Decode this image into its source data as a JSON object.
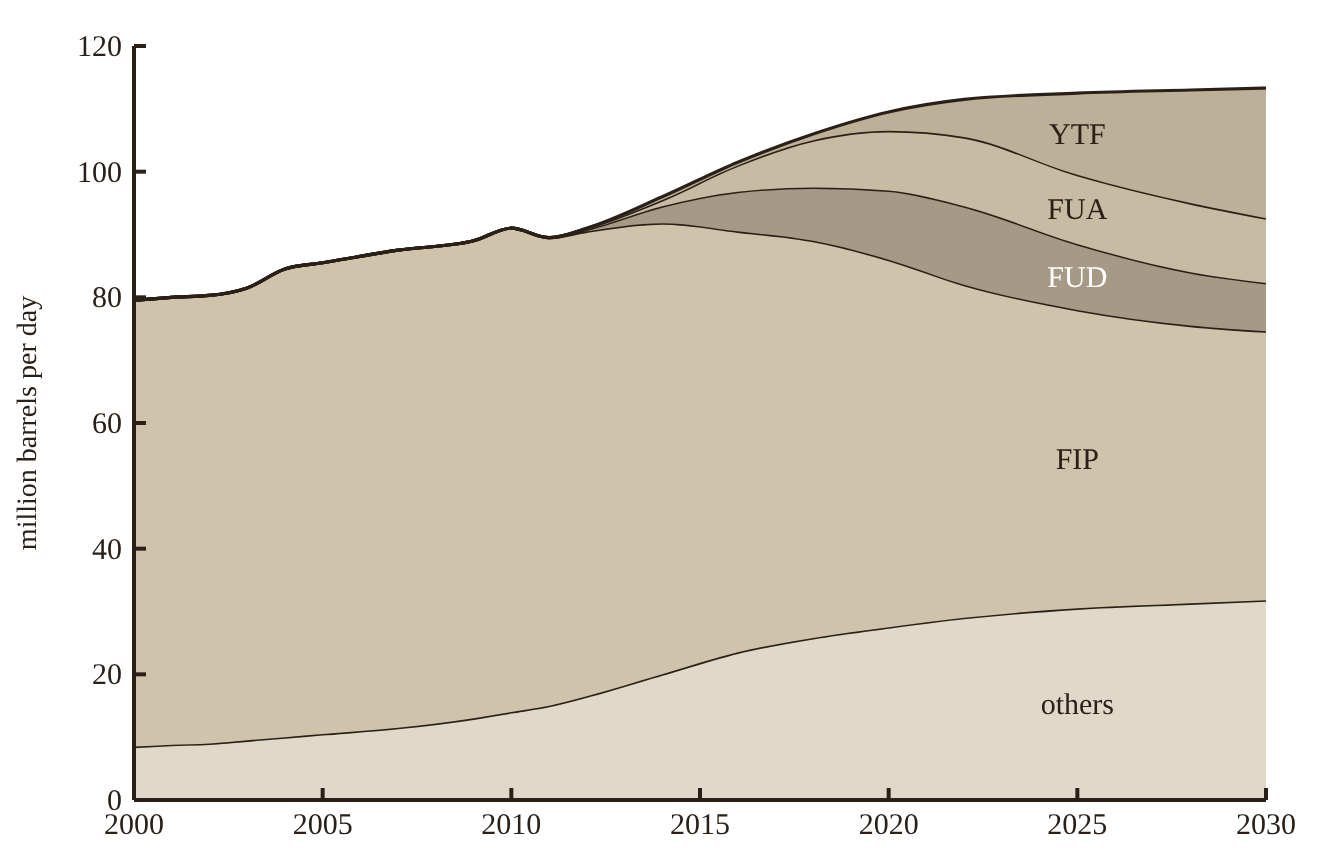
{
  "chart_data": {
    "type": "area",
    "stacked": true,
    "ylabel": "million barrels per day",
    "x": [
      2000,
      2001,
      2002,
      2003,
      2004,
      2005,
      2007,
      2009,
      2010,
      2011,
      2012,
      2014,
      2016,
      2018,
      2020,
      2022,
      2025,
      2028,
      2030
    ],
    "xlim": [
      2000,
      2030
    ],
    "xticks": [
      2000,
      2005,
      2010,
      2015,
      2020,
      2025,
      2030
    ],
    "ylim": [
      0,
      120
    ],
    "yticks": [
      0,
      20,
      40,
      60,
      80,
      100,
      120
    ],
    "grid": false,
    "legend": false,
    "series": [
      {
        "name": "others",
        "color": "#e0d8c8",
        "values": [
          8.5,
          8.8,
          9,
          9.5,
          10,
          10.5,
          11.5,
          13,
          14,
          15,
          16.5,
          20,
          23.5,
          25.8,
          27.5,
          29,
          30.5,
          31.3,
          31.8
        ]
      },
      {
        "name": "FIP",
        "color": "#cfc4ab",
        "values": [
          71,
          71.2,
          71.3,
          72,
          74.5,
          75,
          76,
          76,
          77,
          74.5,
          74,
          71.8,
          67,
          63.2,
          58.5,
          53,
          47.5,
          44.2,
          42.8
        ]
      },
      {
        "name": "FUD",
        "color": "#a69a86",
        "values": [
          0,
          0,
          0,
          0,
          0,
          0,
          0,
          0,
          0,
          0,
          0.3,
          2.7,
          6.3,
          8.5,
          11,
          12.5,
          10.5,
          8.5,
          7.7
        ]
      },
      {
        "name": "FUA",
        "color": "#c6bba3",
        "values": [
          0,
          0,
          0,
          0,
          0,
          0,
          0,
          0,
          0,
          0,
          0.2,
          1,
          4.2,
          7.5,
          9.5,
          11,
          11,
          11,
          10.3
        ]
      },
      {
        "name": "YTF",
        "color": "#bcb099",
        "values": [
          0,
          0,
          0,
          0,
          0,
          0,
          0,
          0,
          0,
          0,
          0,
          0.5,
          0.5,
          1,
          3,
          6,
          13,
          18,
          20.7
        ]
      }
    ]
  }
}
